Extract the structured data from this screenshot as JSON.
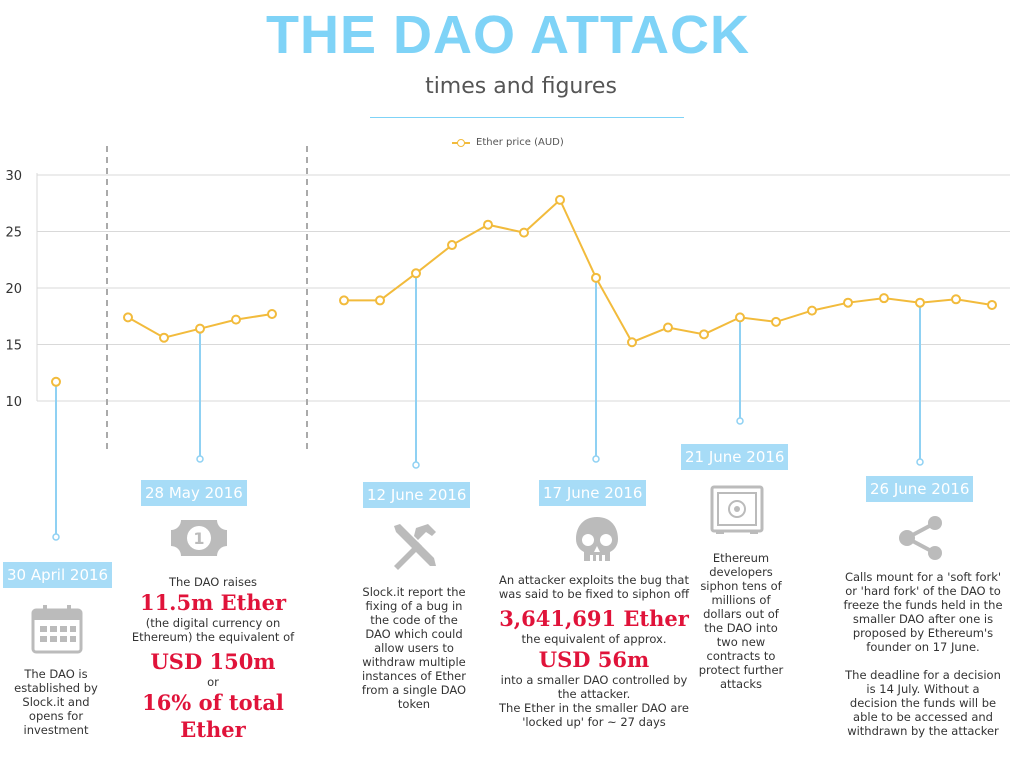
{
  "title": "THE DAO ATTACK",
  "subtitle": "times and figures",
  "chart_data": {
    "type": "line",
    "legend": [
      "Ether price (AUD)"
    ],
    "legend_position": "top-center",
    "y_ticks": [
      10,
      15,
      20,
      25,
      30
    ],
    "ylim": [
      10,
      30
    ],
    "grid": "horizontal",
    "series": [
      {
        "name": "Ether price (AUD)",
        "color": "#f2bb3c",
        "segments": [
          [
            11.7
          ],
          [
            17.4,
            15.6,
            16.4,
            17.2,
            17.7
          ],
          [
            18.9,
            18.9,
            21.3,
            23.8,
            25.6,
            24.9,
            27.8,
            20.9,
            15.2,
            16.5,
            15.9,
            17.4,
            17.0,
            18.0,
            18.7,
            19.1,
            18.7,
            19.0,
            18.5
          ]
        ]
      }
    ]
  },
  "events": [
    {
      "date": "30 April 2016",
      "icon": "calendar-icon",
      "text": "The DAO is established by Slock.it and opens for investment"
    },
    {
      "date": "28 May 2016",
      "icon": "banknote-icon",
      "text1": "The DAO raises",
      "big1": "11.5m Ether",
      "text2": "(the digital currency on Ethereum) the equivalent of",
      "big2": "USD 150m",
      "text3": "or",
      "big3": "16% of total Ether"
    },
    {
      "date": "12 June 2016",
      "icon": "tools-icon",
      "text": "Slock.it report the fixing of a bug in the code of the DAO which could allow users to withdraw multiple instances of Ether from a single DAO token"
    },
    {
      "date": "17 June 2016",
      "icon": "skull-icon",
      "text1": "An attacker exploits the bug that was said to be fixed to siphon off",
      "big1": "3,641,691 Ether",
      "text2": "the equivalent of approx.",
      "big2": "USD 56m",
      "text3": "into a smaller DAO controlled by the attacker.",
      "text4": "The Ether in the smaller DAO are 'locked up' for ~ 27 days"
    },
    {
      "date": "21 June 2016",
      "icon": "safe-icon",
      "text": "Ethereum developers siphon tens of millions of dollars out of the DAO into two new contracts to protect further attacks"
    },
    {
      "date": "26 June 2016",
      "icon": "share-icon",
      "text1": "Calls mount for a 'soft fork' or 'hard fork' of the DAO to freeze the funds held in the smaller DAO after one is proposed by Ethereum's founder on 17 June.",
      "text2": "The deadline for a decision is 14 July. Without a decision the funds will be able to be accessed and withdrawn by the attacker"
    }
  ]
}
